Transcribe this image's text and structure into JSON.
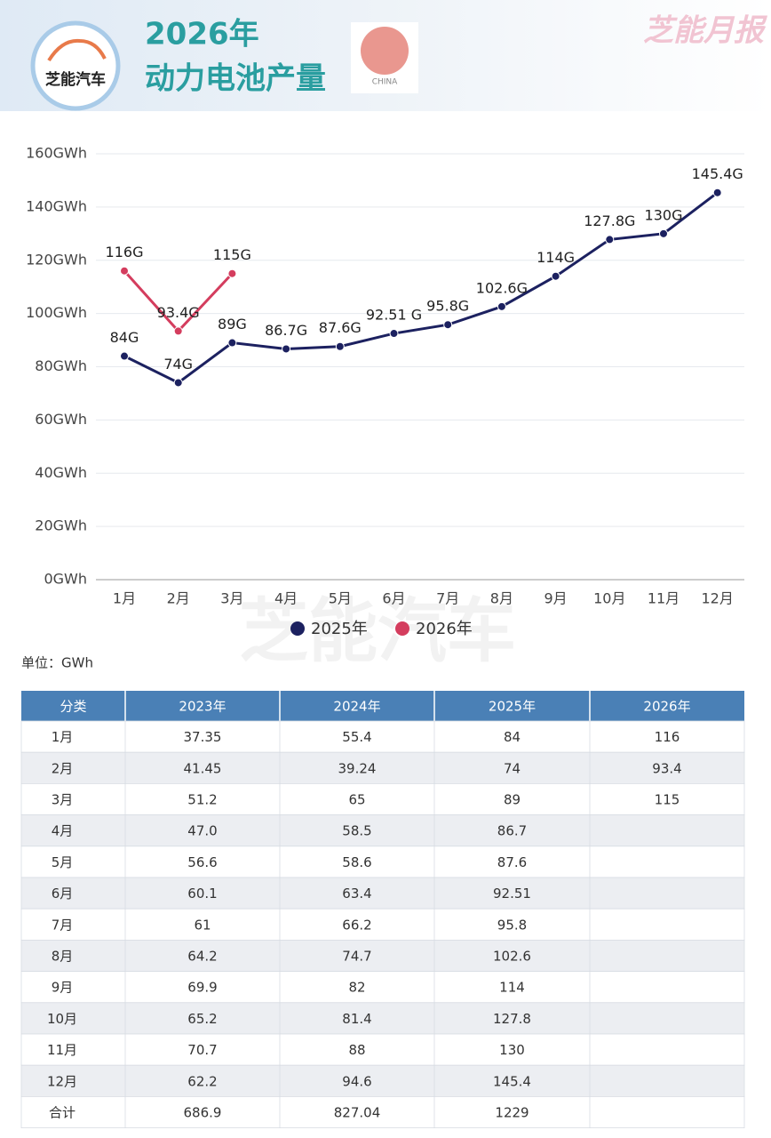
{
  "header": {
    "logo": "芝能汽车",
    "title_line1": "2026年",
    "title_line2": "动力电池产量",
    "flag_label": "CHINA",
    "brand": "芝能月报",
    "watermark": "芝能汽车"
  },
  "chart_data": {
    "type": "line",
    "categories": [
      "1月",
      "2月",
      "3月",
      "4月",
      "5月",
      "6月",
      "7月",
      "8月",
      "9月",
      "10月",
      "11月",
      "12月"
    ],
    "series": [
      {
        "name": "2025年",
        "color": "#1c2160",
        "values": [
          84,
          74,
          89,
          86.7,
          87.6,
          92.51,
          95.8,
          102.6,
          114,
          127.8,
          130,
          145.4
        ],
        "value_labels": [
          "84G",
          "74G",
          "89G",
          "86.7G",
          "87.6G",
          "92.51 G",
          "95.8G",
          "102.6G",
          "114G",
          "127.8G",
          "130G",
          "145.4G"
        ]
      },
      {
        "name": "2026年",
        "color": "#d43d5e",
        "values": [
          116,
          93.4,
          115,
          null,
          null,
          null,
          null,
          null,
          null,
          null,
          null,
          null
        ],
        "value_labels": [
          "116G",
          "93.4G",
          "115G",
          null,
          null,
          null,
          null,
          null,
          null,
          null,
          null,
          null
        ]
      }
    ],
    "ylim": [
      0,
      160
    ],
    "yticks": [
      {
        "value": 0,
        "label": "0GWh"
      },
      {
        "value": 20,
        "label": "20GWh"
      },
      {
        "value": 40,
        "label": "40GWh"
      },
      {
        "value": 60,
        "label": "60GWh"
      },
      {
        "value": 80,
        "label": "80GWh"
      },
      {
        "value": 100,
        "label": "100GWh"
      },
      {
        "value": 120,
        "label": "120GWh"
      },
      {
        "value": 140,
        "label": "140GWh"
      },
      {
        "value": 160,
        "label": "160GWh"
      }
    ],
    "grid": true,
    "legend": "bottom"
  },
  "unit": "单位：GWh",
  "table": {
    "header": [
      "分类",
      "2023年",
      "2024年",
      "2025年",
      "2026年"
    ],
    "rows": [
      [
        "1月",
        "37.35",
        "55.4",
        "84",
        "116"
      ],
      [
        "2月",
        "41.45",
        "39.24",
        "74",
        "93.4"
      ],
      [
        "3月",
        "51.2",
        "65",
        "89",
        "115"
      ],
      [
        "4月",
        "47.0",
        "58.5",
        "86.7",
        null
      ],
      [
        "5月",
        "56.6",
        "58.6",
        "87.6",
        null
      ],
      [
        "6月",
        "60.1",
        "63.4",
        "92.51",
        null
      ],
      [
        "7月",
        "61",
        "66.2",
        "95.8",
        null
      ],
      [
        "8月",
        "64.2",
        "74.7",
        "102.6",
        null
      ],
      [
        "9月",
        "69.9",
        "82",
        "114",
        null
      ],
      [
        "10月",
        "65.2",
        "81.4",
        "127.8",
        null
      ],
      [
        "11月",
        "70.7",
        "88",
        "130",
        null
      ],
      [
        "12月",
        "62.2",
        "94.6",
        "145.4",
        null
      ],
      [
        "合计",
        "686.9",
        "827.04",
        "1229",
        null
      ]
    ]
  }
}
